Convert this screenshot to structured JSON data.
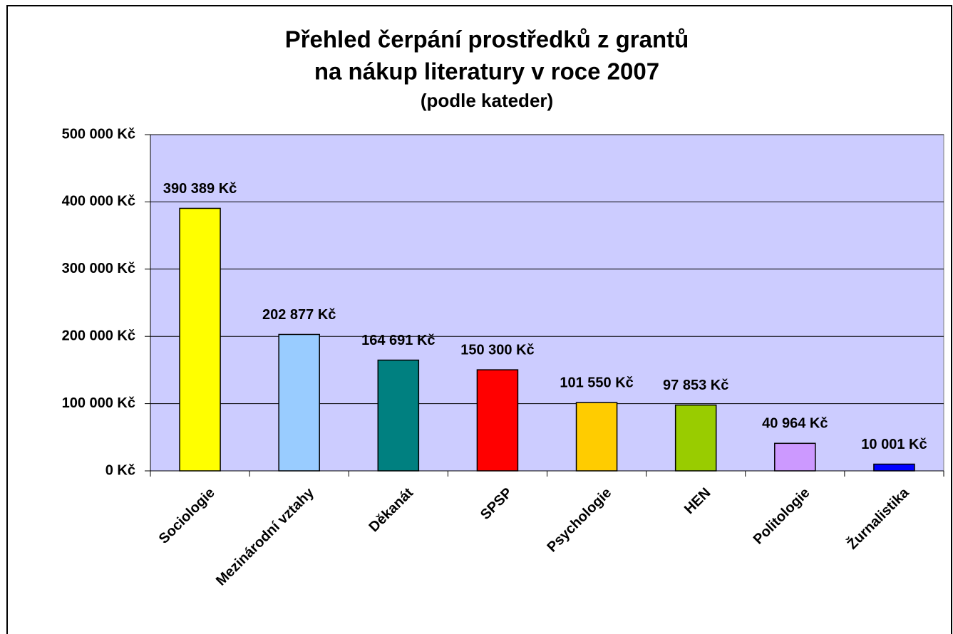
{
  "chart_data": {
    "type": "bar",
    "title_lines": [
      "Přehled čerpání prostředků z grantů",
      "na nákup literatury v roce 2007"
    ],
    "subtitle": "(podle kateder)",
    "categories": [
      "Sociologie",
      "Mezinárodní vztahy",
      "Děkanát",
      "SPSP",
      "Psychologie",
      "HEN",
      "Politologie",
      "Žurnalistika"
    ],
    "values": [
      390389,
      202877,
      164691,
      150300,
      101550,
      97853,
      40964,
      10001
    ],
    "value_labels": [
      "390 389 Kč",
      "202 877 Kč",
      "164 691 Kč",
      "150 300 Kč",
      "101 550 Kč",
      "97 853 Kč",
      "40 964 Kč",
      "10 001 Kč"
    ],
    "colors": [
      "#ffff00",
      "#99ccff",
      "#008080",
      "#ff0000",
      "#ffcc00",
      "#99cc00",
      "#cc99ff",
      "#0000ff"
    ],
    "ylim": [
      0,
      500000
    ],
    "yticks": [
      {
        "value": 0,
        "label": "0 Kč"
      },
      {
        "value": 100000,
        "label": "100 000 Kč"
      },
      {
        "value": 200000,
        "label": "200 000 Kč"
      },
      {
        "value": 300000,
        "label": "300 000 Kč"
      },
      {
        "value": 400000,
        "label": "400 000 Kč"
      },
      {
        "value": 500000,
        "label": "500 000 Kč"
      }
    ],
    "grid": true,
    "plot_background": "#ccccff"
  }
}
